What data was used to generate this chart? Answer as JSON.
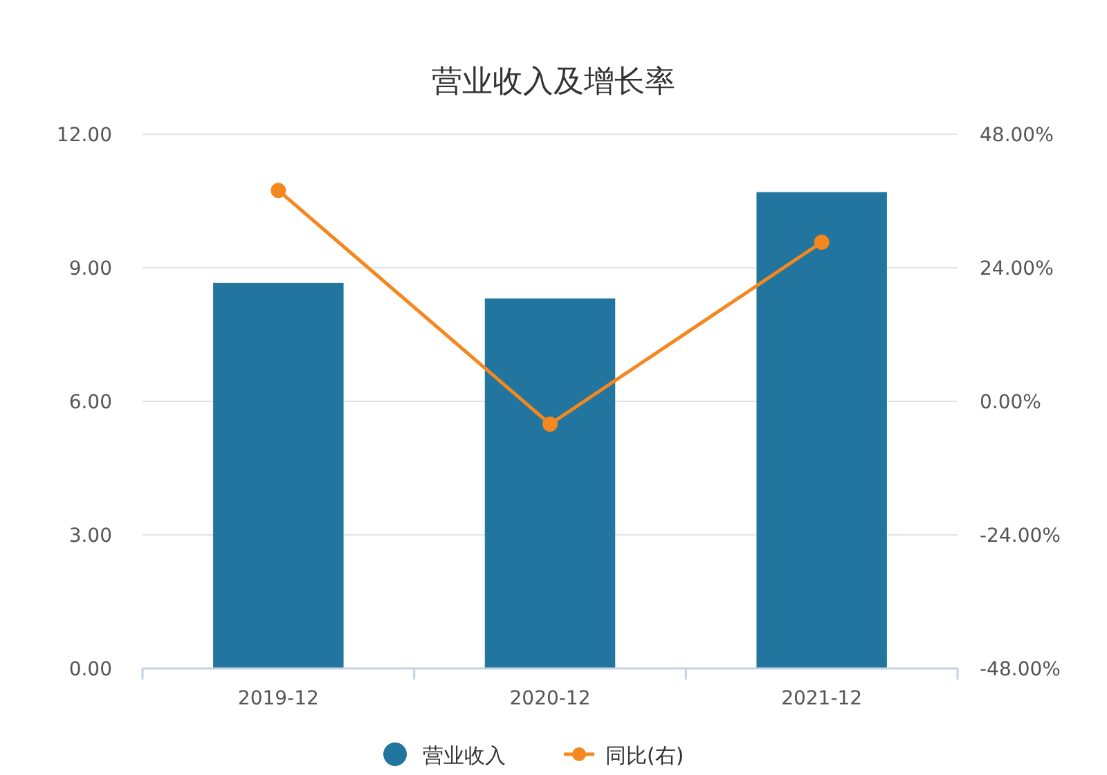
{
  "chart_data": {
    "type": "bar",
    "title": "营业收入及增长率",
    "categories": [
      "2019-12",
      "2020-12",
      "2021-12"
    ],
    "series": [
      {
        "name": "营业收入",
        "color": "#21759f",
        "values": [
          8.66,
          8.31,
          10.7
        ]
      },
      {
        "name": "同比(右)",
        "type": "line",
        "axis": "y2",
        "color": "#f5871f",
        "values": [
          37.9,
          -4.1,
          28.6
        ]
      }
    ],
    "ylim": [
      0,
      12
    ],
    "yticks": [
      {
        "value": 0,
        "label": "0.00"
      },
      {
        "value": 3,
        "label": "3.00"
      },
      {
        "value": 6,
        "label": "6.00"
      },
      {
        "value": 9,
        "label": "9.00"
      },
      {
        "value": 12,
        "label": "12.00"
      }
    ],
    "y2lim": [
      -48,
      48
    ],
    "y2ticks": [
      {
        "value": -48,
        "label": "-48.00%"
      },
      {
        "value": -24,
        "label": "-24.00%"
      },
      {
        "value": 0,
        "label": "0.00%"
      },
      {
        "value": 24,
        "label": "24.00%"
      },
      {
        "value": 48,
        "label": "48.00%"
      }
    ],
    "grid": "y",
    "legend": "bottom",
    "marker": "circle"
  }
}
